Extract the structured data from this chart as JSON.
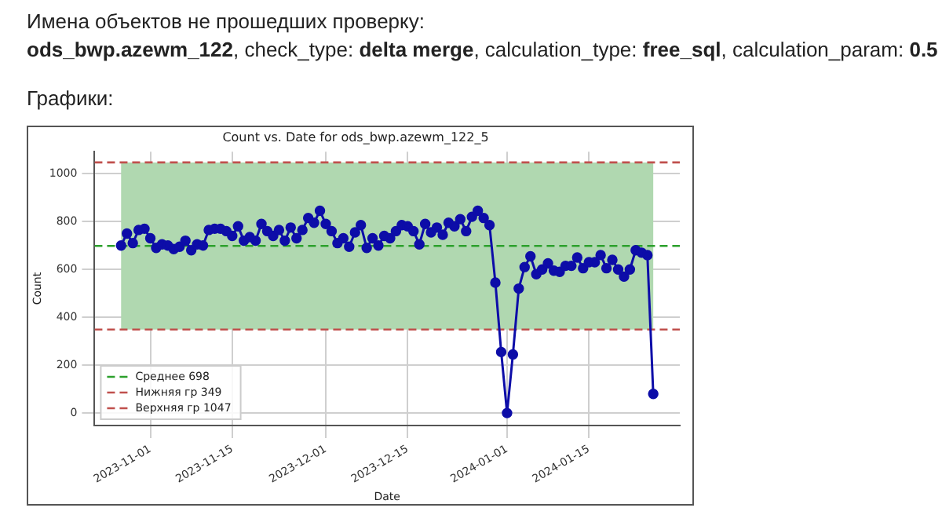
{
  "chart_data": {
    "type": "line",
    "title": "Count vs. Date for ods_bwp.azewm_122_5",
    "xlabel": "Date",
    "ylabel": "Count",
    "annotations": [
      "Имена объектов не прошедших проверку:",
      "ods_bwp.azewm_122",
      ", check_type: ",
      "delta merge",
      ", calculation_type: ",
      "free_sql",
      ", calculation_param: ",
      "0.5",
      "Графики:"
    ],
    "x": [
      "2023-10-27",
      "2023-10-28",
      "2023-10-29",
      "2023-10-30",
      "2023-10-31",
      "2023-11-01",
      "2023-11-02",
      "2023-11-03",
      "2023-11-04",
      "2023-11-05",
      "2023-11-06",
      "2023-11-07",
      "2023-11-08",
      "2023-11-09",
      "2023-11-10",
      "2023-11-11",
      "2023-11-12",
      "2023-11-13",
      "2023-11-14",
      "2023-11-15",
      "2023-11-16",
      "2023-11-17",
      "2023-11-18",
      "2023-11-19",
      "2023-11-20",
      "2023-11-21",
      "2023-11-22",
      "2023-11-23",
      "2023-11-24",
      "2023-11-25",
      "2023-11-26",
      "2023-11-27",
      "2023-11-28",
      "2023-11-29",
      "2023-11-30",
      "2023-12-01",
      "2023-12-02",
      "2023-12-03",
      "2023-12-04",
      "2023-12-05",
      "2023-12-06",
      "2023-12-07",
      "2023-12-08",
      "2023-12-09",
      "2023-12-10",
      "2023-12-11",
      "2023-12-12",
      "2023-12-13",
      "2023-12-14",
      "2023-12-15",
      "2023-12-16",
      "2023-12-17",
      "2023-12-18",
      "2023-12-19",
      "2023-12-20",
      "2023-12-21",
      "2023-12-22",
      "2023-12-23",
      "2023-12-24",
      "2023-12-25",
      "2023-12-26",
      "2023-12-27",
      "2023-12-28",
      "2023-12-29",
      "2023-12-30",
      "2023-12-31",
      "2024-01-01",
      "2024-01-02",
      "2024-01-03",
      "2024-01-04",
      "2024-01-05",
      "2024-01-06",
      "2024-01-07",
      "2024-01-08",
      "2024-01-09",
      "2024-01-10",
      "2024-01-11",
      "2024-01-12",
      "2024-01-13",
      "2024-01-14",
      "2024-01-15",
      "2024-01-16",
      "2024-01-17",
      "2024-01-18",
      "2024-01-19",
      "2024-01-20",
      "2024-01-21",
      "2024-01-22",
      "2024-01-23",
      "2024-01-24",
      "2024-01-25",
      "2024-01-26"
    ],
    "series": [
      {
        "color": "#0d0da8",
        "values": [
          700,
          750,
          710,
          765,
          770,
          730,
          690,
          705,
          700,
          685,
          695,
          720,
          680,
          705,
          700,
          765,
          770,
          770,
          760,
          740,
          780,
          720,
          735,
          720,
          790,
          760,
          740,
          765,
          720,
          775,
          730,
          765,
          815,
          795,
          845,
          790,
          760,
          710,
          730,
          695,
          755,
          785,
          690,
          730,
          700,
          740,
          730,
          760,
          785,
          780,
          760,
          705,
          790,
          755,
          775,
          745,
          795,
          780,
          810,
          760,
          820,
          845,
          815,
          785,
          545,
          255,
          0,
          245,
          520,
          610,
          655,
          580,
          600,
          625,
          595,
          590,
          615,
          615,
          650,
          605,
          630,
          630,
          660,
          605,
          640,
          600,
          570,
          600,
          680,
          670,
          660,
          80
        ]
      }
    ],
    "xlim": [
      "2023-10-22T11:00",
      "2024-01-30T13:00"
    ],
    "xticks": [
      "2023-11-01",
      "2023-11-15",
      "2023-12-01",
      "2023-12-15",
      "2024-01-01",
      "2024-01-15"
    ],
    "ylim": [
      -52,
      1092
    ],
    "yticks": [
      0,
      200,
      400,
      600,
      800,
      1000
    ],
    "bands": [
      {
        "axis": "y",
        "from": 349,
        "to": 1047,
        "color": "#b0d8b0"
      }
    ],
    "ref_lines": [
      {
        "axis": "y",
        "value": 698,
        "label": "Среднее 698",
        "color": "#2ca02c",
        "line_style": "dashed"
      },
      {
        "axis": "y",
        "value": 349,
        "label": "Нижняя гр 349",
        "color": "#c0504d",
        "line_style": "dashed"
      },
      {
        "axis": "y",
        "value": 1047,
        "label": "Верхняя гр 1047",
        "color": "#c0504d",
        "line_style": "dashed"
      }
    ],
    "grid": true,
    "legend": "bottom left",
    "marker": "circle",
    "line_style": "solid"
  }
}
